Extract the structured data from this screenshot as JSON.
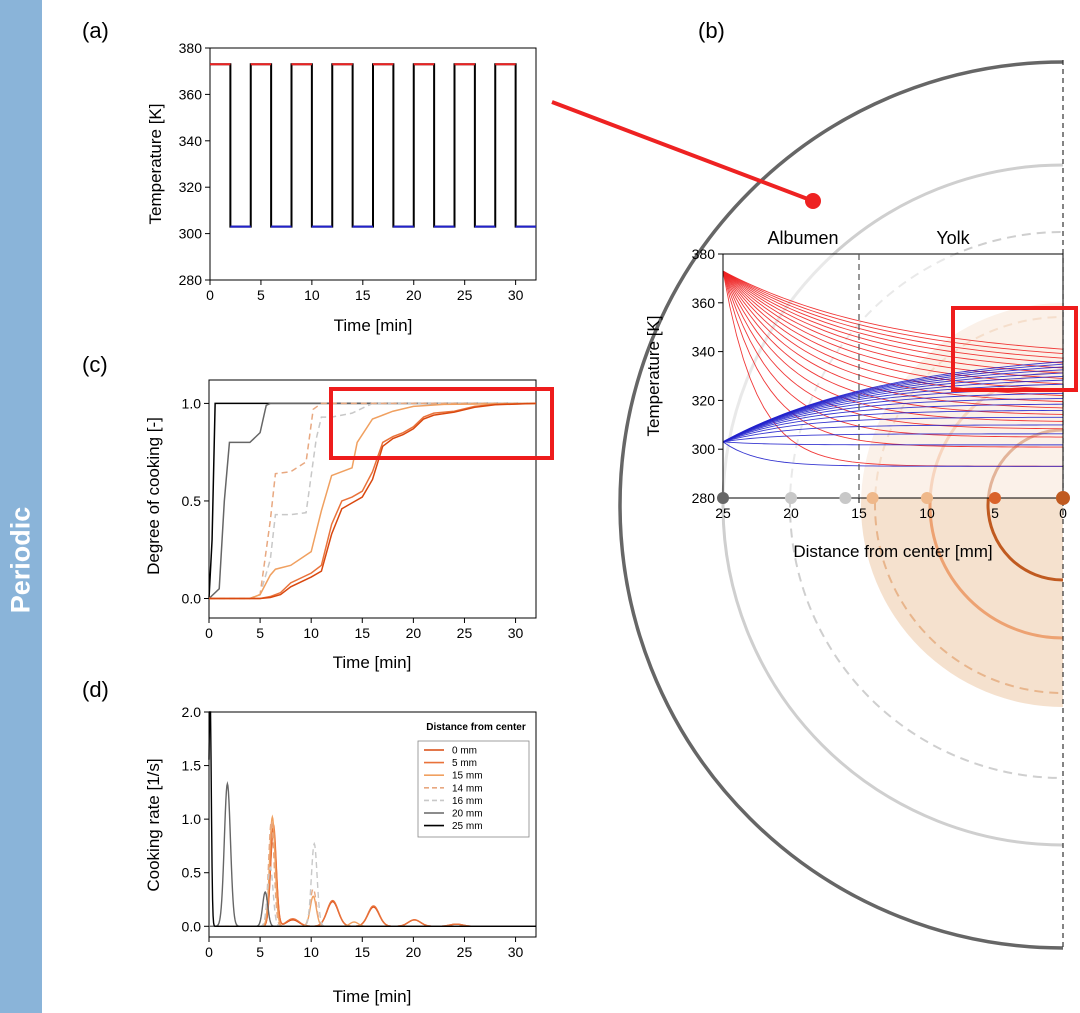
{
  "sidebar": {
    "label": "Periodic",
    "color": "#8ab4d9"
  },
  "colors": {
    "hot": "#ee2222",
    "cold": "#2222cc",
    "highlight": "#ee1c1c",
    "albumen_dark": "#666666",
    "albumen_light": "#c8c8c8",
    "yolk_fill": "#ecc9a6"
  },
  "chart_data": [
    {
      "panel": "(a)",
      "type": "line",
      "xlabel": "Time [min]",
      "ylabel": "Temperature [K]",
      "xlim": [
        0,
        32
      ],
      "ylim": [
        280,
        380
      ],
      "xticks": [
        "0",
        "5",
        "10",
        "15",
        "20",
        "25",
        "30"
      ],
      "yticks": [
        "280",
        "300",
        "320",
        "340",
        "360",
        "380"
      ],
      "waveform": {
        "high": 373,
        "low": 303,
        "period_min": 4,
        "high_duration_min": 2
      }
    },
    {
      "panel": "(b)",
      "type": "line",
      "xlabel": "Distance from center [mm]",
      "ylabel": "Temperature [K]",
      "xlim": [
        25,
        0
      ],
      "ylim": [
        280,
        380
      ],
      "xticks": [
        "25",
        "20",
        "15",
        "10",
        "5",
        "0"
      ],
      "yticks": [
        "280",
        "300",
        "320",
        "340",
        "360",
        "380"
      ],
      "regions": [
        {
          "label": "Albumen",
          "from": 25,
          "to": 15
        },
        {
          "label": "Yolk",
          "from": 15,
          "to": 0
        }
      ],
      "boundary_mm": 15,
      "profile_markers": [
        {
          "x": 25,
          "color": "#666666"
        },
        {
          "x": 20,
          "color": "#c8c8c8"
        },
        {
          "x": 16,
          "color": "#c8c8c8"
        },
        {
          "x": 14,
          "color": "#efb88a"
        },
        {
          "x": 10,
          "color": "#efb88a"
        },
        {
          "x": 5,
          "color": "#d9622b"
        },
        {
          "x": 0,
          "color": "#c05a20"
        }
      ],
      "series": [
        {
          "role": "heating",
          "color": "#ee2222",
          "edge_value": 373,
          "center_start": 293,
          "center_end": 336
        },
        {
          "role": "cooling",
          "color": "#2222cc",
          "edge_value": 303,
          "center_start": 293,
          "center_end": 341
        }
      ]
    },
    {
      "panel": "(c)",
      "type": "line",
      "xlabel": "Time [min]",
      "ylabel": "Degree of cooking [-]",
      "xlim": [
        0,
        32
      ],
      "ylim": [
        -0.1,
        1.12
      ],
      "xticks": [
        "0",
        "5",
        "10",
        "15",
        "20",
        "25",
        "30"
      ],
      "yticks": [
        "0.0",
        "0.5",
        "1.0"
      ],
      "series": [
        {
          "distance": "25 mm",
          "color": "#000000",
          "dash": "",
          "x": [
            0,
            0.3,
            0.6,
            32
          ],
          "y": [
            0,
            0.3,
            1.0,
            1.0
          ]
        },
        {
          "distance": "20 mm",
          "color": "#666666",
          "dash": "",
          "x": [
            0,
            1,
            1.5,
            2,
            2.5,
            4,
            5,
            5.6,
            6,
            32
          ],
          "y": [
            0,
            0.05,
            0.5,
            0.8,
            0.8,
            0.8,
            0.85,
            0.99,
            1.0,
            1.0
          ]
        },
        {
          "distance": "16 mm",
          "color": "#c8c8c8",
          "dash": "6,4",
          "x": [
            0,
            4,
            5,
            6,
            6.5,
            8,
            9.5,
            10.5,
            11,
            12,
            14,
            16,
            32
          ],
          "y": [
            0,
            0,
            0.02,
            0.2,
            0.43,
            0.43,
            0.44,
            0.82,
            0.93,
            0.93,
            0.95,
            1.0,
            1.0
          ]
        },
        {
          "distance": "14 mm",
          "color": "#e8a880",
          "dash": "6,4",
          "x": [
            0,
            4,
            5,
            6,
            6.5,
            8,
            9.5,
            10.2,
            11,
            12,
            32
          ],
          "y": [
            0,
            0,
            0.02,
            0.4,
            0.64,
            0.65,
            0.7,
            0.97,
            1.0,
            1.0,
            1.0
          ]
        },
        {
          "distance": "15 mm",
          "color": "#f0a060",
          "dash": "",
          "x": [
            0,
            4,
            5,
            6,
            6.5,
            8,
            10,
            11,
            12,
            13,
            14,
            14.5,
            16,
            17,
            18,
            20,
            23,
            32
          ],
          "y": [
            0,
            0,
            0.02,
            0.12,
            0.15,
            0.17,
            0.24,
            0.45,
            0.63,
            0.65,
            0.67,
            0.8,
            0.92,
            0.94,
            0.96,
            0.985,
            0.995,
            1.0
          ]
        },
        {
          "distance": "5 mm",
          "color": "#e9723a",
          "dash": "",
          "x": [
            0,
            5,
            6,
            7,
            8,
            10,
            11,
            12,
            13,
            14,
            15,
            16,
            17,
            18,
            19,
            20,
            21,
            22,
            24,
            26,
            28,
            32
          ],
          "y": [
            0,
            0,
            0.01,
            0.03,
            0.08,
            0.13,
            0.17,
            0.38,
            0.5,
            0.52,
            0.55,
            0.65,
            0.8,
            0.83,
            0.85,
            0.88,
            0.93,
            0.95,
            0.96,
            0.985,
            0.995,
            1.0
          ]
        },
        {
          "distance": "0 mm",
          "color": "#d9480f",
          "dash": "",
          "x": [
            0,
            5,
            6,
            7,
            8,
            10,
            11,
            12,
            13,
            14,
            15,
            16,
            17,
            18,
            19,
            20,
            21,
            22,
            24,
            26,
            28,
            32
          ],
          "y": [
            0,
            0,
            0.005,
            0.02,
            0.06,
            0.11,
            0.14,
            0.33,
            0.46,
            0.49,
            0.52,
            0.61,
            0.78,
            0.82,
            0.84,
            0.87,
            0.92,
            0.94,
            0.955,
            0.98,
            0.993,
            1.0
          ]
        }
      ]
    },
    {
      "panel": "(d)",
      "type": "line",
      "xlabel": "Time [min]",
      "ylabel": "Cooking rate [1/s]",
      "xlim": [
        0,
        32
      ],
      "ylim": [
        -0.1,
        2.0
      ],
      "xticks": [
        "0",
        "5",
        "10",
        "15",
        "20",
        "25",
        "30"
      ],
      "yticks": [
        "0.0",
        "0.5",
        "1.0",
        "1.5",
        "2.0"
      ],
      "legend_title": "Distance from center",
      "legend_position": "top-right",
      "series": [
        {
          "name": "0 mm",
          "color": "#d9480f",
          "dash": "",
          "peaks": [
            [
              6.3,
              0.9,
              0.28
            ],
            [
              8.2,
              0.06,
              0.6
            ],
            [
              12.1,
              0.23,
              0.55
            ],
            [
              16.1,
              0.18,
              0.55
            ],
            [
              20.1,
              0.06,
              0.6
            ],
            [
              24.2,
              0.02,
              0.6
            ]
          ]
        },
        {
          "name": "5 mm",
          "color": "#e9723a",
          "dash": "",
          "peaks": [
            [
              6.3,
              0.95,
              0.28
            ],
            [
              8.2,
              0.07,
              0.6
            ],
            [
              12.1,
              0.24,
              0.55
            ],
            [
              16.1,
              0.19,
              0.55
            ],
            [
              20.1,
              0.06,
              0.6
            ],
            [
              24.2,
              0.02,
              0.6
            ]
          ]
        },
        {
          "name": "15 mm",
          "color": "#f0a060",
          "dash": "",
          "peaks": [
            [
              6.2,
              1.02,
              0.27
            ],
            [
              10.2,
              0.28,
              0.3
            ],
            [
              14.2,
              0.04,
              0.4
            ]
          ]
        },
        {
          "name": "14 mm",
          "color": "#e8a880",
          "dash": "6,4",
          "peaks": [
            [
              6.1,
              0.98,
              0.27
            ],
            [
              10.2,
              0.35,
              0.3
            ]
          ]
        },
        {
          "name": "16 mm",
          "color": "#c8c8c8",
          "dash": "6,4",
          "peaks": [
            [
              6.0,
              0.55,
              0.27
            ],
            [
              10.3,
              0.77,
              0.28
            ]
          ]
        },
        {
          "name": "20 mm",
          "color": "#666666",
          "dash": "",
          "peaks": [
            [
              1.8,
              1.33,
              0.3
            ],
            [
              5.5,
              0.32,
              0.25
            ]
          ]
        },
        {
          "name": "25 mm",
          "color": "#000000",
          "dash": "",
          "peaks": [
            [
              0.1,
              2.2,
              0.12
            ]
          ]
        }
      ]
    }
  ]
}
